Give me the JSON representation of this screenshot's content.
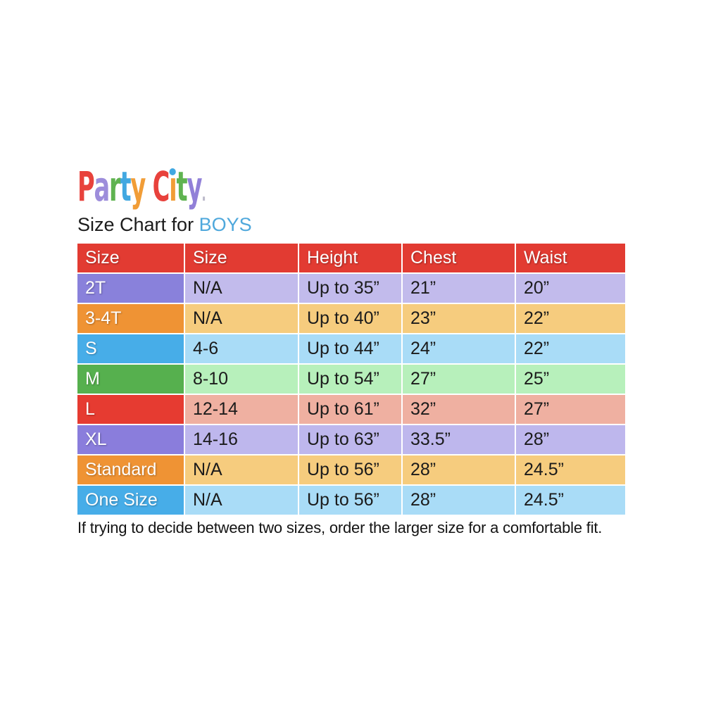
{
  "logo": {
    "brand": "Party City.",
    "letters": [
      {
        "ch": "P",
        "color": "#E8423C"
      },
      {
        "ch": "a",
        "color": "#9D8DDB"
      },
      {
        "ch": "r",
        "color": "#5FB350"
      },
      {
        "ch": "t",
        "color": "#41A8E1"
      },
      {
        "ch": "y",
        "color": "#F19D37"
      },
      {
        "ch": " "
      },
      {
        "ch": "C",
        "color": "#E8423C"
      },
      {
        "ch": "ı",
        "color": "#F19D37",
        "dot": "#41A8E1"
      },
      {
        "ch": "t",
        "color": "#5FB350"
      },
      {
        "ch": "y",
        "color": "#9180D8"
      },
      {
        "ch": ".",
        "color": "#BDBBCB",
        "period": true
      }
    ]
  },
  "title": {
    "prefix": "Size Chart for ",
    "highlight": "BOYS",
    "highlight_color": "#4FA8DC"
  },
  "table": {
    "header_bg": "#E23B32",
    "header_text_color": "#ffffff",
    "headers": [
      "Size",
      "Size",
      "Height",
      "Chest",
      "Waist"
    ],
    "rows": [
      {
        "label": "2T",
        "label_bg": "#8981DB",
        "data_bg": "#C2BBEC",
        "values": [
          "N/A",
          "Up to 35”",
          "21”",
          "20”"
        ]
      },
      {
        "label": "3-4T",
        "label_bg": "#EF9334",
        "data_bg": "#F6CC7E",
        "values": [
          "N/A",
          "Up to 40”",
          "23”",
          "22”"
        ]
      },
      {
        "label": "S",
        "label_bg": "#47ADE8",
        "data_bg": "#A9DCF7",
        "values": [
          "4-6",
          "Up to 44”",
          "24”",
          "22”"
        ]
      },
      {
        "label": "M",
        "label_bg": "#56B04E",
        "data_bg": "#B7F0BB",
        "values": [
          "8-10",
          "Up to 54”",
          "27”",
          "25”"
        ]
      },
      {
        "label": "L",
        "label_bg": "#E63B31",
        "data_bg": "#EFB0A1",
        "values": [
          "12-14",
          "Up to 61”",
          "32”",
          "27”"
        ]
      },
      {
        "label": "XL",
        "label_bg": "#8A7DDC",
        "data_bg": "#BEB7ED",
        "values": [
          "14-16",
          "Up to 63”",
          "33.5”",
          "28”"
        ]
      },
      {
        "label": "Standard",
        "label_bg": "#EF9334",
        "data_bg": "#F6CC7E",
        "values": [
          "N/A",
          "Up to 56”",
          "28”",
          "24.5”"
        ]
      },
      {
        "label": "One Size",
        "label_bg": "#47ADE8",
        "data_bg": "#A9DCF7",
        "values": [
          "N/A",
          "Up to 56”",
          "28”",
          "24.5”"
        ]
      }
    ]
  },
  "footer": {
    "note": "If trying to decide between two sizes, order the larger size for a comfortable fit."
  },
  "chart_data": {
    "type": "table",
    "title": "Size Chart for BOYS",
    "columns": [
      "Size",
      "Size",
      "Height",
      "Chest",
      "Waist"
    ],
    "rows": [
      [
        "2T",
        "N/A",
        "Up to 35”",
        "21”",
        "20”"
      ],
      [
        "3-4T",
        "N/A",
        "Up to 40”",
        "23”",
        "22”"
      ],
      [
        "S",
        "4-6",
        "Up to 44”",
        "24”",
        "22”"
      ],
      [
        "M",
        "8-10",
        "Up to 54”",
        "27”",
        "25”"
      ],
      [
        "L",
        "12-14",
        "Up to 61”",
        "32”",
        "27”"
      ],
      [
        "XL",
        "14-16",
        "Up to 63”",
        "33.5”",
        "28”"
      ],
      [
        "Standard",
        "N/A",
        "Up to 56”",
        "28”",
        "24.5”"
      ],
      [
        "One Size",
        "N/A",
        "Up to 56”",
        "28”",
        "24.5”"
      ]
    ],
    "note": "If trying to decide between two sizes, order the larger size for a comfortable fit."
  }
}
